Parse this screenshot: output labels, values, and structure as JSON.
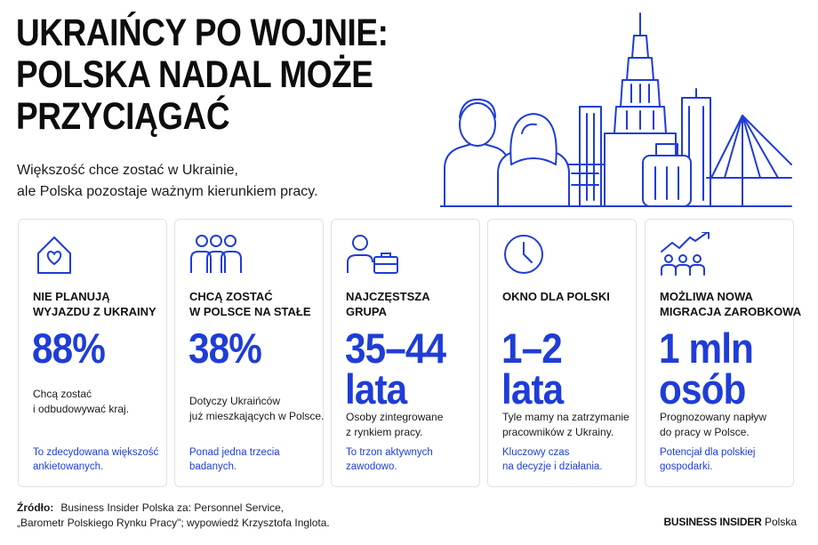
{
  "title_lines": [
    "UKRAIŃCY PO WOJNIE:",
    "POLSKA NADAL MOŻE",
    "PRZYCIĄGAĆ"
  ],
  "subtitle_lines": [
    "Większość chce zostać w Ukrainie,",
    "ale Polska pozostaje ważnym kierunkiem pracy."
  ],
  "accent_color": "#1f3dd6",
  "cards": [
    {
      "icon": "house-heart-icon",
      "heading_lines": [
        "NIE PLANUJĄ",
        "WYJAZDU Z UKRAINY"
      ],
      "stat_lines": [
        "88%"
      ],
      "description_lines": [
        "Chcą zostać",
        "i odbudowywać kraj."
      ],
      "note_lines": [
        "To zdecydowana większość",
        "ankietowanych."
      ]
    },
    {
      "icon": "people-group-icon",
      "heading_lines": [
        "CHCĄ ZOSTAĆ",
        "W POLSCE NA STAŁE"
      ],
      "stat_lines": [
        "38%"
      ],
      "description_lines": [
        "Dotyczy Ukraińców",
        "już mieszkających w Polsce."
      ],
      "note_lines": [
        "Ponad jedna trzecia",
        "badanych."
      ]
    },
    {
      "icon": "person-briefcase-icon",
      "heading_lines": [
        "NAJCZĘSTSZA",
        "GRUPA"
      ],
      "stat_lines": [
        "35–44",
        "lata"
      ],
      "description_lines": [
        "Osoby zintegrowane",
        "z rynkiem pracy."
      ],
      "note_lines": [
        "To trzon aktywnych",
        "zawodowo."
      ]
    },
    {
      "icon": "clock-icon",
      "heading_lines": [
        "OKNO DLA POLSKI"
      ],
      "stat_lines": [
        "1–2",
        "lata"
      ],
      "description_lines": [
        "Tyle mamy na zatrzymanie",
        "pracowników z Ukrainy."
      ],
      "note_lines": [
        "Kluczowy czas",
        "na decyzje i działania."
      ]
    },
    {
      "icon": "people-growth-icon",
      "heading_lines": [
        "MOŻLIWA NOWA",
        "MIGRACJA ZAROBKOWA"
      ],
      "stat_lines": [
        "1 mln",
        "osób"
      ],
      "description_lines": [
        "Prognozowany napływ",
        "do pracy w Polsce."
      ],
      "note_lines": [
        "Potencjał dla polskiej",
        "gospodarki."
      ]
    }
  ],
  "source": {
    "label": "Źródło:",
    "line1": "Business Insider Polska za: Personnel Service,",
    "line2": "„Barometr Polskiego Rynku Pracy\"; wypowiedź Krzysztofa Inglota."
  },
  "brand": {
    "bold": "BUSINESS INSIDER",
    "regular": "Polska"
  }
}
